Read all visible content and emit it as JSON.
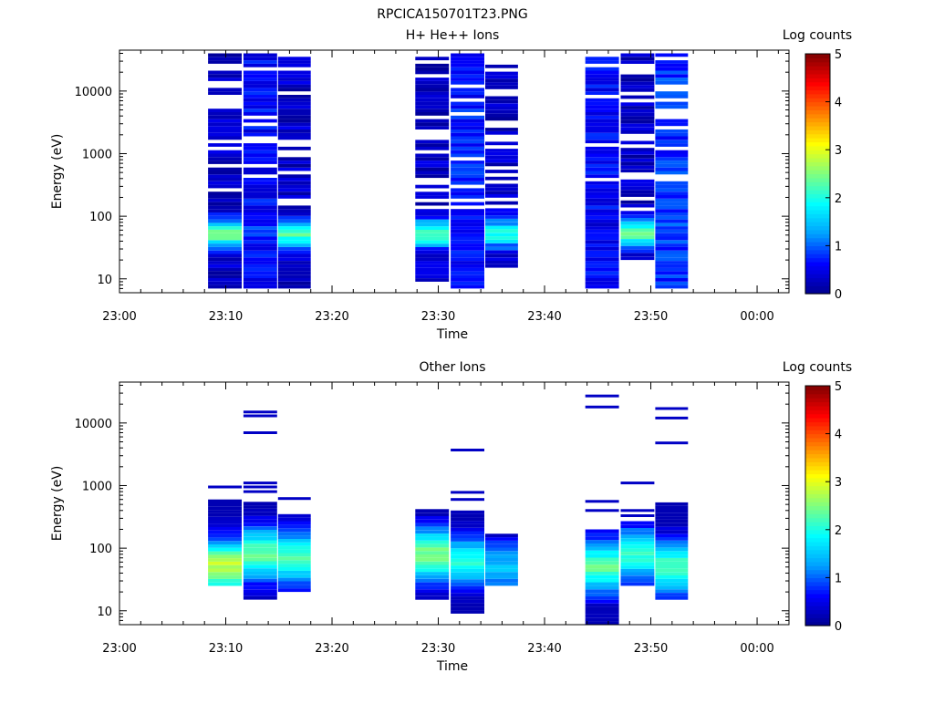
{
  "figure": {
    "filename": "RPCICA150701T23.PNG"
  },
  "time_ticks": [
    "23:00",
    "23:10",
    "23:20",
    "23:30",
    "23:40",
    "23:50",
    "00:00"
  ],
  "colorscale": {
    "label": "Log counts",
    "ticks": [
      "0",
      "1",
      "2",
      "3",
      "4",
      "5"
    ],
    "range": [
      0,
      5
    ],
    "stops": [
      "#00008f",
      "#0000ff",
      "#00a0ff",
      "#00ffff",
      "#80ff80",
      "#ffff00",
      "#ff8000",
      "#ff0000",
      "#800000"
    ]
  },
  "chart_data": [
    {
      "type": "heatmap",
      "title": "H+ He++ Ions",
      "xlabel": "Time",
      "ylabel": "Energy (eV)",
      "y_scale": "log",
      "ylim": [
        6,
        45000
      ],
      "xlim": [
        "23:00",
        "00:03"
      ],
      "y_tick_labels": [
        "10",
        "100",
        "1000",
        "10000"
      ],
      "colorbar_label": "Log counts",
      "time_blocks": [
        {
          "start": "23:08:20",
          "end": "23:11:30",
          "energy_min": 7,
          "energy_max": 40000,
          "counts_low_energy": 2.4,
          "counts_high_energy": 0.3
        },
        {
          "start": "23:11:40",
          "end": "23:14:50",
          "energy_min": 7,
          "energy_max": 40000,
          "counts_low_energy": 0.8,
          "counts_high_energy": 0.6
        },
        {
          "start": "23:14:55",
          "end": "23:18:00",
          "energy_min": 7,
          "energy_max": 40000,
          "counts_low_energy": 2.2,
          "counts_high_energy": 0.3
        },
        {
          "start": "23:27:50",
          "end": "23:31:00",
          "energy_min": 9,
          "energy_max": 40000,
          "counts_low_energy": 2.3,
          "counts_high_energy": 0.3
        },
        {
          "start": "23:31:10",
          "end": "23:34:20",
          "energy_min": 7,
          "energy_max": 40000,
          "counts_low_energy": 0.7,
          "counts_high_energy": 0.7
        },
        {
          "start": "23:34:25",
          "end": "23:37:30",
          "energy_min": 15,
          "energy_max": 30000,
          "counts_low_energy": 2.0,
          "counts_high_energy": 0.3
        },
        {
          "start": "23:43:50",
          "end": "23:47:00",
          "energy_min": 7,
          "energy_max": 40000,
          "counts_low_energy": 0.5,
          "counts_high_energy": 0.6
        },
        {
          "start": "23:47:10",
          "end": "23:50:20",
          "energy_min": 20,
          "energy_max": 40000,
          "counts_low_energy": 2.4,
          "counts_high_energy": 0.3
        },
        {
          "start": "23:50:25",
          "end": "23:53:30",
          "energy_min": 7,
          "energy_max": 40000,
          "counts_low_energy": 0.9,
          "counts_high_energy": 0.8
        }
      ]
    },
    {
      "type": "heatmap",
      "title": "Other Ions",
      "xlabel": "Time",
      "ylabel": "Energy (eV)",
      "y_scale": "log",
      "ylim": [
        6,
        45000
      ],
      "xlim": [
        "23:00",
        "00:03"
      ],
      "y_tick_labels": [
        "10",
        "100",
        "1000",
        "10000"
      ],
      "colorbar_label": "Log counts",
      "time_blocks": [
        {
          "start": "23:08:20",
          "end": "23:11:30",
          "energy_min": 25,
          "energy_max": 600,
          "peak_energy": 50,
          "peak_counts": 2.8,
          "isolated_energies": [
            950
          ]
        },
        {
          "start": "23:11:40",
          "end": "23:14:50",
          "energy_min": 15,
          "energy_max": 550,
          "peak_energy": 80,
          "peak_counts": 2.3,
          "isolated_energies": [
            800,
            950,
            1100,
            7000,
            13000,
            15000
          ]
        },
        {
          "start": "23:14:55",
          "end": "23:18:00",
          "energy_min": 20,
          "energy_max": 350,
          "peak_energy": 70,
          "peak_counts": 2.2,
          "isolated_energies": [
            620
          ]
        },
        {
          "start": "23:27:50",
          "end": "23:31:00",
          "energy_min": 15,
          "energy_max": 420,
          "peak_energy": 80,
          "peak_counts": 2.5,
          "isolated_energies": []
        },
        {
          "start": "23:31:10",
          "end": "23:34:20",
          "energy_min": 9,
          "energy_max": 400,
          "peak_energy": 60,
          "peak_counts": 2.0,
          "isolated_energies": [
            600,
            780,
            3700
          ]
        },
        {
          "start": "23:34:25",
          "end": "23:37:30",
          "energy_min": 25,
          "energy_max": 170,
          "peak_energy": 50,
          "peak_counts": 1.5,
          "isolated_energies": []
        },
        {
          "start": "23:43:50",
          "end": "23:47:00",
          "energy_min": 6,
          "energy_max": 200,
          "peak_energy": 50,
          "peak_counts": 2.3,
          "isolated_energies": [
            400,
            560,
            18000,
            27000
          ]
        },
        {
          "start": "23:47:10",
          "end": "23:50:20",
          "energy_min": 25,
          "energy_max": 270,
          "peak_energy": 80,
          "peak_counts": 2.1,
          "isolated_energies": [
            330,
            400,
            1100
          ]
        },
        {
          "start": "23:50:25",
          "end": "23:53:30",
          "energy_min": 15,
          "energy_max": 540,
          "peak_energy": 50,
          "peak_counts": 2.2,
          "isolated_energies": [
            4800,
            12000,
            17000
          ]
        }
      ]
    }
  ]
}
